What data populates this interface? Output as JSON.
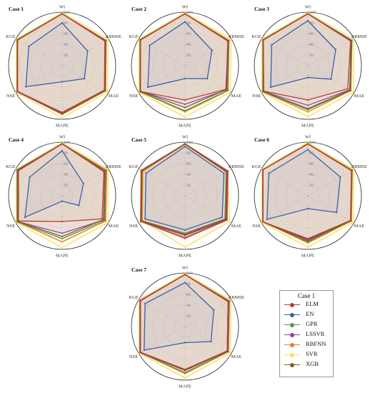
{
  "chart_data": {
    "type": "radar",
    "axes": [
      "WI",
      "RRMSE",
      "MAE",
      "MAPE",
      "NSE",
      "KGE"
    ],
    "rlim": [
      0,
      100
    ],
    "ticks": [
      "20",
      "40",
      "60",
      "80",
      "100"
    ],
    "series_colors": {
      "ELM": "#c0392b",
      "EN": "#3a5fa8",
      "GPR": "#4a9d3a",
      "LSSVR": "#8e44ad",
      "RBFNN": "#e67e22",
      "SVR": "#f1e05a",
      "XGB": "#8b5a2b"
    },
    "panels": [
      {
        "title": "Case 1",
        "series": [
          {
            "name": "ELM",
            "values": [
              97,
              93,
              92,
              88,
              96,
              96
            ]
          },
          {
            "name": "EN",
            "values": [
              80,
              55,
              48,
              30,
              78,
              72
            ]
          },
          {
            "name": "GPR",
            "values": [
              97,
              94,
              93,
              90,
              97,
              97
            ]
          },
          {
            "name": "LSSVR",
            "values": [
              97,
              94,
              92,
              89,
              97,
              96
            ]
          },
          {
            "name": "RBFNN",
            "values": [
              97,
              95,
              94,
              91,
              97,
              97
            ]
          },
          {
            "name": "SVR",
            "values": [
              99,
              99,
              98,
              97,
              99,
              99
            ]
          },
          {
            "name": "XGB",
            "values": [
              97,
              92,
              91,
              87,
              96,
              96
            ]
          }
        ]
      },
      {
        "title": "Case 2",
        "series": [
          {
            "name": "ELM",
            "values": [
              97,
              93,
              88,
              64,
              96,
              96
            ]
          },
          {
            "name": "EN",
            "values": [
              82,
              58,
              48,
              24,
              80,
              76
            ]
          },
          {
            "name": "GPR",
            "values": [
              97,
              94,
              92,
              84,
              97,
              97
            ]
          },
          {
            "name": "LSSVR",
            "values": [
              97,
              93,
              90,
              72,
              96,
              96
            ]
          },
          {
            "name": "RBFNN",
            "values": [
              97,
              95,
              93,
              86,
              97,
              97
            ]
          },
          {
            "name": "SVR",
            "values": [
              99,
              99,
              98,
              96,
              99,
              99
            ]
          },
          {
            "name": "XGB",
            "values": [
              97,
              92,
              89,
              78,
              96,
              96
            ]
          }
        ]
      },
      {
        "title": "Case 3",
        "series": [
          {
            "name": "ELM",
            "values": [
              97,
              92,
              86,
              64,
              95,
              96
            ]
          },
          {
            "name": "EN",
            "values": [
              84,
              60,
              50,
              22,
              80,
              78
            ]
          },
          {
            "name": "GPR",
            "values": [
              97,
              95,
              92,
              82,
              97,
              97
            ]
          },
          {
            "name": "LSSVR",
            "values": [
              97,
              94,
              90,
              74,
              96,
              96
            ]
          },
          {
            "name": "RBFNN",
            "values": [
              97,
              95,
              93,
              86,
              97,
              97
            ]
          },
          {
            "name": "SVR",
            "values": [
              99,
              99,
              98,
              95,
              99,
              99
            ]
          },
          {
            "name": "XGB",
            "values": [
              97,
              93,
              91,
              80,
              96,
              96
            ]
          }
        ]
      },
      {
        "title": "Case 4",
        "series": [
          {
            "name": "ELM",
            "values": [
              97,
              90,
              86,
              48,
              94,
              94
            ]
          },
          {
            "name": "EN",
            "values": [
              84,
              46,
              36,
              10,
              80,
              70
            ]
          },
          {
            "name": "GPR",
            "values": [
              97,
              94,
              92,
              80,
              97,
              97
            ]
          },
          {
            "name": "LSSVR",
            "values": [
              97,
              93,
              90,
              70,
              96,
              96
            ]
          },
          {
            "name": "RBFNN",
            "values": [
              97,
              96,
              94,
              86,
              97,
              97
            ]
          },
          {
            "name": "SVR",
            "values": [
              99,
              99,
              99,
              97,
              99,
              99
            ]
          },
          {
            "name": "XGB",
            "values": [
              97,
              92,
              89,
              76,
              96,
              95
            ]
          }
        ]
      },
      {
        "title": "Case 5",
        "series": [
          {
            "name": "ELM",
            "values": [
              97,
              90,
              88,
              72,
              94,
              93
            ]
          },
          {
            "name": "EN",
            "values": [
              92,
              84,
              80,
              64,
              86,
              84
            ]
          },
          {
            "name": "GPR",
            "values": [
              96,
              89,
              86,
              70,
              93,
              92
            ]
          },
          {
            "name": "LSSVR",
            "values": [
              97,
              92,
              90,
              78,
              95,
              94
            ]
          },
          {
            "name": "RBFNN",
            "values": [
              97,
              93,
              91,
              80,
              96,
              95
            ]
          },
          {
            "name": "SVR",
            "values": [
              98,
              92,
              96,
              96,
              92,
              90
            ]
          },
          {
            "name": "XGB",
            "values": [
              97,
              91,
              89,
              74,
              95,
              94
            ]
          }
        ]
      },
      {
        "title": "Case 6",
        "series": [
          {
            "name": "ELM",
            "values": [
              97,
              94,
              92,
              80,
              97,
              97
            ]
          },
          {
            "name": "EN",
            "values": [
              86,
              70,
              62,
              24,
              88,
              84
            ]
          },
          {
            "name": "GPR",
            "values": [
              97,
              95,
              93,
              86,
              97,
              97
            ]
          },
          {
            "name": "LSSVR",
            "values": [
              97,
              94,
              92,
              82,
              97,
              97
            ]
          },
          {
            "name": "RBFNN",
            "values": [
              97,
              96,
              94,
              88,
              97,
              97
            ]
          },
          {
            "name": "SVR",
            "values": [
              99,
              99,
              98,
              96,
              99,
              99
            ]
          },
          {
            "name": "XGB",
            "values": [
              97,
              94,
              92,
              84,
              97,
              97
            ]
          }
        ]
      },
      {
        "title": "Case 7",
        "series": [
          {
            "name": "ELM",
            "values": [
              97,
              93,
              91,
              80,
              96,
              96
            ]
          },
          {
            "name": "EN",
            "values": [
              82,
              62,
              56,
              30,
              88,
              86
            ]
          },
          {
            "name": "GPR",
            "values": [
              97,
              95,
              93,
              86,
              97,
              97
            ]
          },
          {
            "name": "LSSVR",
            "values": [
              97,
              94,
              92,
              82,
              97,
              97
            ]
          },
          {
            "name": "RBFNN",
            "values": [
              97,
              96,
              94,
              88,
              97,
              97
            ]
          },
          {
            "name": "SVR",
            "values": [
              99,
              99,
              98,
              96,
              99,
              99
            ]
          },
          {
            "name": "XGB",
            "values": [
              97,
              93,
              91,
              82,
              96,
              96
            ]
          }
        ]
      }
    ],
    "legend": {
      "title": "Case 1",
      "entries": [
        "ELM",
        "EN",
        "GPR",
        "LSSVR",
        "RBFNN",
        "SVR",
        "XGB"
      ]
    }
  }
}
